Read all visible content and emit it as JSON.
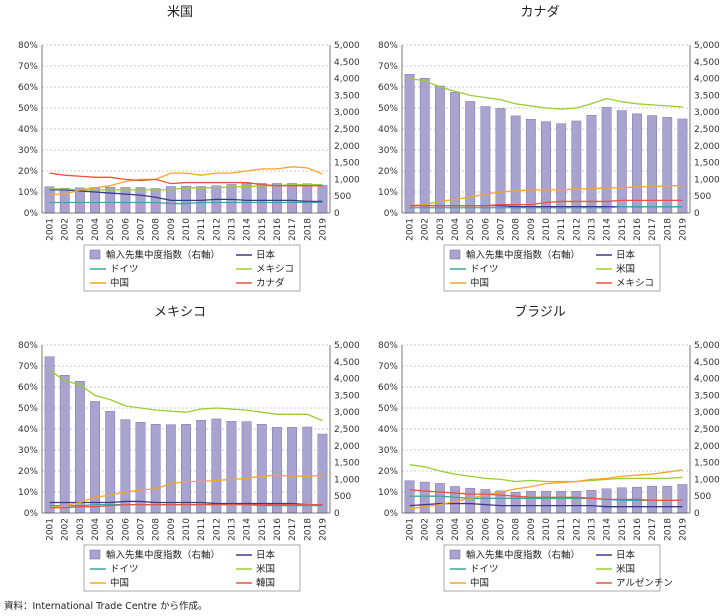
{
  "source": "資料：International Trade Centre から作成。",
  "chart_data": [
    {
      "type": "bar",
      "title": "米国",
      "categories": [
        "2001",
        "2002",
        "2003",
        "2004",
        "2005",
        "2006",
        "2007",
        "2008",
        "2009",
        "2010",
        "2011",
        "2012",
        "2013",
        "2014",
        "2015",
        "2016",
        "2017",
        "2018",
        "2019"
      ],
      "y_left_ticks": [
        "0%",
        "10%",
        "20%",
        "30%",
        "40%",
        "50%",
        "60%",
        "70%",
        "80%"
      ],
      "y_right_ticks": [
        "0",
        "500",
        "1,000",
        "1,500",
        "2,000",
        "2,500",
        "3,000",
        "3,500",
        "4,000",
        "4,500",
        "5,000"
      ],
      "ylim_left": [
        0,
        80
      ],
      "ylim_right": [
        0,
        5000
      ],
      "bar_series": {
        "name": "輸入先集中度指数（右軸）",
        "color": "#a9a3d0",
        "values": [
          780,
          740,
          750,
          760,
          770,
          760,
          760,
          730,
          790,
          800,
          790,
          810,
          850,
          870,
          880,
          880,
          880,
          870,
          820
        ]
      },
      "series": [
        {
          "name": "日本",
          "color": "#3a3a8c",
          "values": [
            11,
            11,
            10.5,
            10,
            9.5,
            9,
            8.5,
            7.5,
            6,
            6,
            6,
            6.5,
            6.5,
            6,
            6,
            6,
            6,
            5.5,
            5.5
          ]
        },
        {
          "name": "ドイツ",
          "color": "#3aa6a6",
          "values": [
            5,
            5,
            5,
            5,
            5,
            5,
            5,
            5,
            4.5,
            4.5,
            5,
            5,
            5,
            5,
            5,
            5,
            5,
            5,
            5
          ]
        },
        {
          "name": "メキシコ",
          "color": "#9acd32",
          "values": [
            11.5,
            11.5,
            11,
            11,
            11,
            11,
            11,
            11,
            11,
            12,
            12,
            12,
            12.5,
            12.5,
            13,
            13,
            13.5,
            13.5,
            13.5
          ]
        },
        {
          "name": "中国",
          "color": "#f5a623",
          "values": [
            9,
            9,
            11,
            12,
            13,
            15,
            16,
            16,
            19,
            19,
            18,
            19,
            19,
            20,
            21,
            21,
            22,
            21.5,
            18.5
          ]
        },
        {
          "name": "カナダ",
          "color": "#e8543b",
          "values": [
            19,
            18,
            17.5,
            17,
            17,
            16,
            15.5,
            16,
            14,
            14.5,
            14.5,
            14.5,
            14.5,
            14.5,
            13.5,
            13,
            13,
            13,
            13
          ]
        }
      ],
      "legend": [
        "輸入先集中度指数（右軸）",
        "日本",
        "ドイツ",
        "メキシコ",
        "中国",
        "カナダ"
      ]
    },
    {
      "type": "bar",
      "title": "カナダ",
      "categories": [
        "2001",
        "2002",
        "2003",
        "2004",
        "2005",
        "2006",
        "2007",
        "2008",
        "2009",
        "2010",
        "2011",
        "2012",
        "2013",
        "2014",
        "2015",
        "2016",
        "2017",
        "2018",
        "2019"
      ],
      "y_left_ticks": [
        "0%",
        "10%",
        "20%",
        "30%",
        "40%",
        "50%",
        "60%",
        "70%",
        "80%"
      ],
      "y_right_ticks": [
        "0",
        "500",
        "1,000",
        "1,500",
        "2,000",
        "2,500",
        "3,000",
        "3,500",
        "4,000",
        "4,500",
        "5,000"
      ],
      "ylim_left": [
        0,
        80
      ],
      "ylim_right": [
        0,
        5000
      ],
      "bar_series": {
        "name": "輸入先集中度指数（右軸）",
        "color": "#a9a3d0",
        "values": [
          4130,
          4010,
          3780,
          3600,
          3320,
          3170,
          3110,
          2890,
          2790,
          2720,
          2660,
          2740,
          2910,
          3150,
          3050,
          2950,
          2900,
          2850,
          2800
        ]
      },
      "series": [
        {
          "name": "日本",
          "color": "#3a3a8c",
          "values": [
            3.5,
            3.5,
            3.5,
            3.5,
            3.5,
            3.5,
            3.5,
            3,
            3,
            3,
            3,
            3,
            3,
            3,
            3,
            3,
            3,
            3,
            3
          ]
        },
        {
          "name": "ドイツ",
          "color": "#3aa6a6",
          "values": [
            2.5,
            2.5,
            2.5,
            2.5,
            2.5,
            2.5,
            2.5,
            2.5,
            2.5,
            2.5,
            2.5,
            2.5,
            2.5,
            2.5,
            3,
            3,
            3,
            3,
            3
          ]
        },
        {
          "name": "米国",
          "color": "#9acd32",
          "values": [
            64,
            63,
            60,
            58,
            56,
            55,
            54,
            52,
            51,
            50,
            49.5,
            50,
            52,
            54.5,
            53,
            52,
            51.5,
            51,
            50.5
          ]
        },
        {
          "name": "中国",
          "color": "#f5a623",
          "values": [
            3.5,
            4,
            5.5,
            6.5,
            7.5,
            9,
            10,
            10.5,
            11,
            11,
            11,
            11.5,
            11.5,
            12,
            12,
            12.5,
            12.5,
            13,
            13
          ]
        },
        {
          "name": "メキシコ",
          "color": "#e8543b",
          "values": [
            3.5,
            3.5,
            3.5,
            3.5,
            3.5,
            3.5,
            4,
            4,
            4,
            5,
            5.5,
            5.5,
            5.5,
            5.5,
            6,
            6,
            6,
            6,
            6
          ]
        }
      ],
      "legend": [
        "輸入先集中度指数（右軸）",
        "日本",
        "ドイツ",
        "米国",
        "中国",
        "メキシコ"
      ]
    },
    {
      "type": "bar",
      "title": "メキシコ",
      "categories": [
        "2001",
        "2002",
        "2003",
        "2004",
        "2005",
        "2006",
        "2007",
        "2008",
        "2009",
        "2010",
        "2011",
        "2012",
        "2013",
        "2014",
        "2015",
        "2016",
        "2017",
        "2018",
        "2019"
      ],
      "y_left_ticks": [
        "0%",
        "10%",
        "20%",
        "30%",
        "40%",
        "50%",
        "60%",
        "70%",
        "80%"
      ],
      "y_right_ticks": [
        "0",
        "500",
        "1,000",
        "1,500",
        "2,000",
        "2,500",
        "3,000",
        "3,500",
        "4,000",
        "4,500",
        "5,000"
      ],
      "ylim_left": [
        0,
        80
      ],
      "ylim_right": [
        0,
        5000
      ],
      "bar_series": {
        "name": "輸入先集中度指数（右軸）",
        "color": "#a9a3d0",
        "values": [
          4650,
          4100,
          3920,
          3320,
          3030,
          2780,
          2700,
          2640,
          2630,
          2640,
          2760,
          2800,
          2730,
          2720,
          2640,
          2550,
          2550,
          2560,
          2350
        ]
      },
      "series": [
        {
          "name": "日本",
          "color": "#3a3a8c",
          "values": [
            5,
            5,
            5,
            5,
            5,
            5.5,
            5.5,
            5,
            5,
            5,
            5,
            4.5,
            4.5,
            4.5,
            4.5,
            4.5,
            4.5,
            4,
            4
          ]
        },
        {
          "name": "ドイツ",
          "color": "#3aa6a6",
          "values": [
            3.5,
            3.5,
            3.5,
            4,
            4,
            4,
            4,
            4,
            4,
            4,
            4,
            4,
            4,
            4,
            3.5,
            3.5,
            3.5,
            3.5,
            3.5
          ]
        },
        {
          "name": "米国",
          "color": "#9acd32",
          "values": [
            68,
            63,
            61,
            56,
            54,
            51,
            50,
            49,
            48.5,
            48,
            49.5,
            50,
            49.5,
            49,
            48,
            47,
            47,
            47,
            44
          ]
        },
        {
          "name": "中国",
          "color": "#f5a623",
          "values": [
            2.5,
            3.5,
            5,
            7.5,
            8.5,
            10,
            11,
            11.5,
            14,
            15,
            15,
            15.5,
            16,
            16.5,
            17.5,
            18,
            17.5,
            17.5,
            18
          ]
        },
        {
          "name": "韓国",
          "color": "#e8543b",
          "values": [
            2.5,
            2.5,
            3,
            3,
            3.5,
            4,
            4,
            4,
            4,
            4,
            4,
            4,
            4,
            4,
            4,
            4,
            4,
            4,
            4
          ]
        }
      ],
      "legend": [
        "輸入先集中度指数（右軸）",
        "日本",
        "ドイツ",
        "米国",
        "中国",
        "韓国"
      ]
    },
    {
      "type": "bar",
      "title": "ブラジル",
      "categories": [
        "2001",
        "2002",
        "2003",
        "2004",
        "2005",
        "2006",
        "2007",
        "2008",
        "2009",
        "2010",
        "2011",
        "2012",
        "2013",
        "2014",
        "2015",
        "2016",
        "2017",
        "2018",
        "2019"
      ],
      "y_left_ticks": [
        "0%",
        "10%",
        "20%",
        "30%",
        "40%",
        "50%",
        "60%",
        "70%",
        "80%"
      ],
      "y_right_ticks": [
        "0",
        "500",
        "1,000",
        "1,500",
        "2,000",
        "2,500",
        "3,000",
        "3,500",
        "4,000",
        "4,500",
        "5,000"
      ],
      "ylim_left": [
        0,
        80
      ],
      "ylim_right": [
        0,
        5000
      ],
      "bar_series": {
        "name": "輸入先集中度指数（右軸）",
        "color": "#a9a3d0",
        "values": [
          960,
          920,
          880,
          790,
          740,
          700,
          660,
          620,
          650,
          650,
          650,
          650,
          680,
          720,
          750,
          770,
          800,
          800,
          850
        ]
      },
      "series": [
        {
          "name": "日本",
          "color": "#3a3a8c",
          "values": [
            3.5,
            4,
            4.5,
            4.5,
            4.5,
            4,
            3.5,
            3.5,
            3.5,
            3.5,
            3.5,
            3.5,
            3.5,
            3,
            3,
            3,
            3,
            3,
            3
          ]
        },
        {
          "name": "ドイツ",
          "color": "#3aa6a6",
          "values": [
            8,
            8,
            8,
            7.5,
            7,
            7,
            7,
            7,
            7,
            7,
            7,
            7,
            7,
            6.5,
            6,
            6,
            6,
            6,
            6
          ]
        },
        {
          "name": "米国",
          "color": "#9acd32",
          "values": [
            23,
            22,
            20,
            18.5,
            17.5,
            16.5,
            16,
            15,
            15.5,
            15,
            15,
            15,
            15.5,
            16,
            16.5,
            16.5,
            16.5,
            16.5,
            17
          ]
        },
        {
          "name": "中国",
          "color": "#f5a623",
          "values": [
            2,
            3,
            4,
            5.5,
            7,
            8.5,
            10,
            11.5,
            12.5,
            14,
            14.5,
            15,
            16,
            16.5,
            17.5,
            18,
            18.5,
            19.5,
            20.5
          ]
        },
        {
          "name": "アルゼンチン",
          "color": "#e8543b",
          "values": [
            11,
            10.5,
            10,
            9.5,
            9,
            9,
            8.5,
            8,
            7.5,
            7.5,
            7.5,
            7.5,
            7,
            6.5,
            6.5,
            6.5,
            6,
            6,
            6
          ]
        }
      ],
      "legend": [
        "輸入先集中度指数（右軸）",
        "日本",
        "ドイツ",
        "米国",
        "中国",
        "アルゼンチン"
      ]
    }
  ]
}
